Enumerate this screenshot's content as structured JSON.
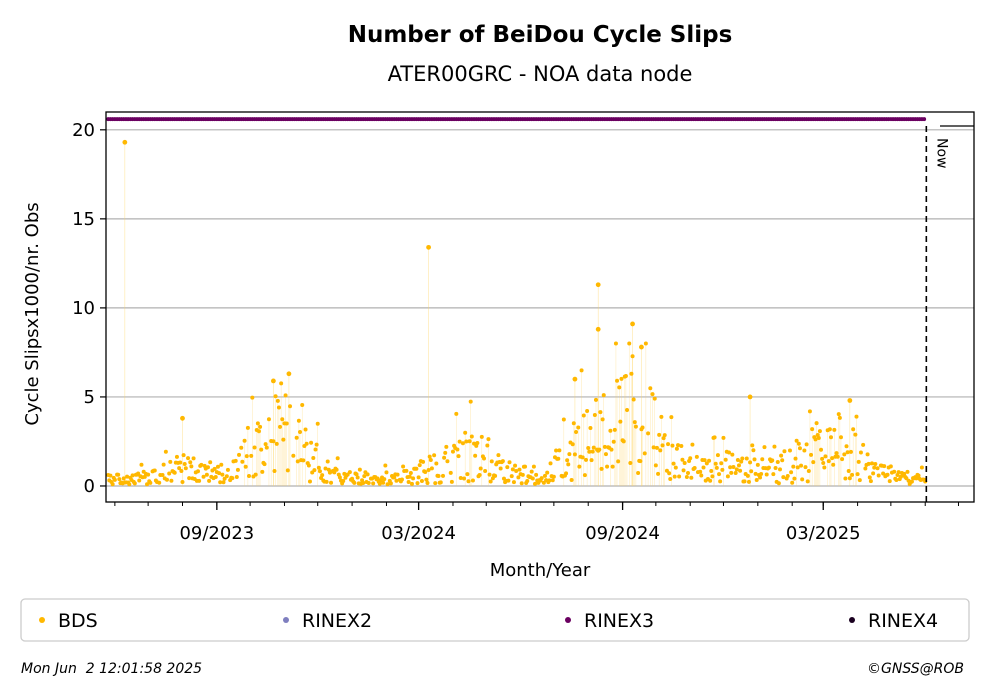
{
  "chart_data": {
    "type": "scatter",
    "title": "Number of BeiDou Cycle Slips",
    "subtitle": "ATER00GRC - NOA data node",
    "xlabel": "Month/Year",
    "ylabel": "Cycle Slipsx1000/nr. Obs",
    "ylim": [
      -0.9,
      21
    ],
    "yticks": [
      0,
      5,
      10,
      15,
      20
    ],
    "xlim": [
      "2023-05-24",
      "2025-07-15"
    ],
    "xticks": [
      {
        "date": "2023-09-01",
        "label": "09/2023"
      },
      {
        "date": "2024-03-01",
        "label": "03/2024"
      },
      {
        "date": "2024-09-01",
        "label": "09/2024"
      },
      {
        "date": "2025-03-01",
        "label": "03/2025"
      }
    ],
    "grid": "y",
    "now": {
      "date": "2025-06-02",
      "label": "Now"
    },
    "series": [
      {
        "name": "BDS",
        "color": "#ffb800",
        "marker": "dot",
        "peaks": [
          {
            "date": "2023-06-10",
            "value": 19.3
          },
          {
            "date": "2023-08-01",
            "value": 3.8
          },
          {
            "date": "2023-10-22",
            "value": 5.9
          },
          {
            "date": "2023-11-05",
            "value": 6.3
          },
          {
            "date": "2024-03-10",
            "value": 13.4
          },
          {
            "date": "2024-07-20",
            "value": 6.0
          },
          {
            "date": "2024-08-10",
            "value": 11.3
          },
          {
            "date": "2024-08-10",
            "value": 8.8
          },
          {
            "date": "2024-09-10",
            "value": 9.1
          },
          {
            "date": "2024-09-18",
            "value": 7.8
          },
          {
            "date": "2024-12-25",
            "value": 5.0
          },
          {
            "date": "2025-03-25",
            "value": 4.8
          }
        ]
      },
      {
        "name": "RINEX2",
        "color": "#7f7fbf",
        "marker": "dot"
      },
      {
        "name": "RINEX3",
        "color": "#6a0060",
        "marker": "dot",
        "level": 20.6
      },
      {
        "name": "RINEX4",
        "color": "#1a0020",
        "marker": "dot"
      }
    ],
    "legend": "bottom"
  },
  "footer": {
    "timestamp": "Mon Jun  2 12:01:58 2025",
    "credit": "©GNSS@ROB"
  }
}
